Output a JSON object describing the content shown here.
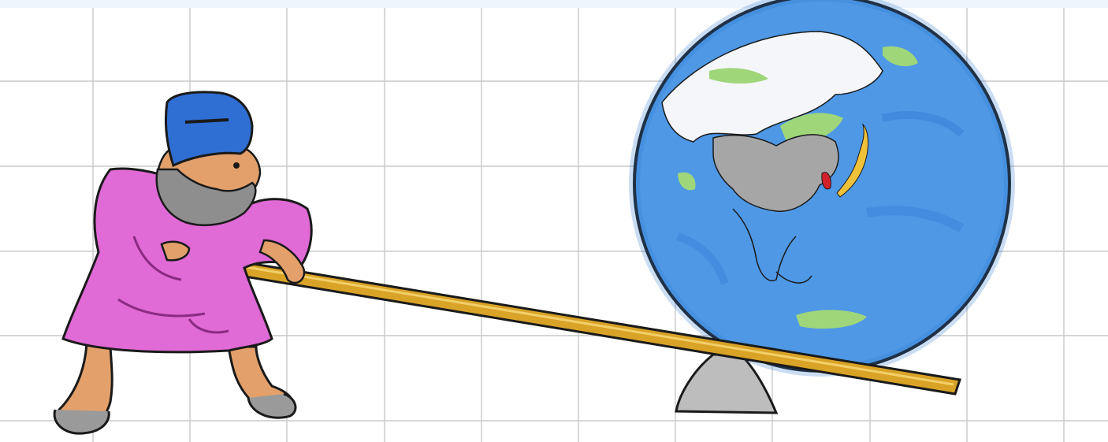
{
  "scene": {
    "subject": "archimedes-lever-moving-globe",
    "colors": {
      "paper": "#ffffff",
      "grid": "#c9c9c9",
      "robe": "#e06ad6",
      "hat": "#2f6ed3",
      "beard": "#8e8e8e",
      "skin": "#e3a06a",
      "lever": "#d9a327",
      "ocean": "#4e98e6",
      "land_gray": "#a6a6a6",
      "land_green": "#9fd67a",
      "highlight_red": "#d3212b",
      "highlight_yellow": "#f0c23a",
      "fulcrum": "#bdbdbd",
      "ink": "#1a1a1a"
    },
    "icons": [
      "person-icon",
      "lever-icon",
      "globe-icon",
      "fulcrum-icon"
    ]
  }
}
